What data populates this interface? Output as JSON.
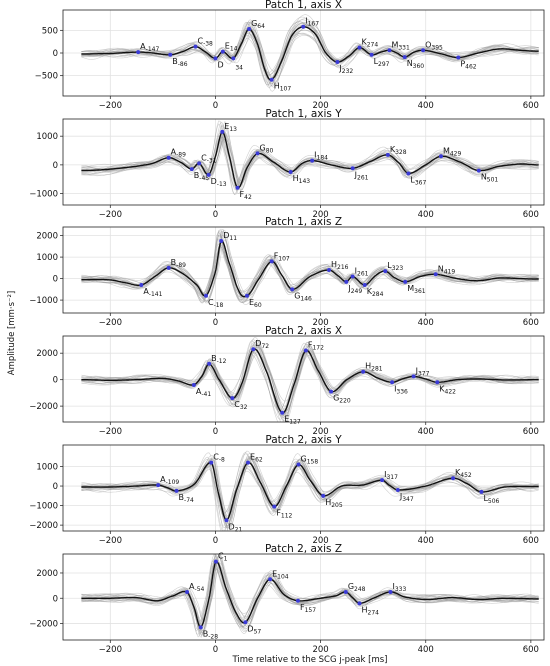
{
  "xlabel": "Time relative to the SCG j-peak [ms]",
  "ylabel": "Amplitude [mm·s⁻²]",
  "xlim": [
    -290,
    625
  ],
  "x_ticks": [
    -200,
    0,
    200,
    400,
    600
  ],
  "chart_data": [
    {
      "type": "line",
      "title": "Patch 1, axis X",
      "ylim": [
        -950,
        950
      ],
      "y_ticks": [
        -500,
        0,
        500
      ],
      "points": [
        {
          "l": "A",
          "s": "-147",
          "x": -147,
          "y": 20
        },
        {
          "l": "B",
          "s": "-86",
          "x": -86,
          "y": -40
        },
        {
          "l": "C",
          "s": "-38",
          "x": -38,
          "y": 140
        },
        {
          "l": "D",
          "s": "",
          "x": 0,
          "y": -120
        },
        {
          "l": "E",
          "s": "14",
          "x": 14,
          "y": 30
        },
        {
          "l": "",
          "s": "34",
          "x": 34,
          "y": -120
        },
        {
          "l": "G",
          "s": "64",
          "x": 64,
          "y": 530
        },
        {
          "l": "H",
          "s": "107",
          "x": 107,
          "y": -590
        },
        {
          "l": "I",
          "s": "167",
          "x": 167,
          "y": 580
        },
        {
          "l": "J",
          "s": "232",
          "x": 232,
          "y": -200
        },
        {
          "l": "K",
          "s": "274",
          "x": 274,
          "y": 120
        },
        {
          "l": "L",
          "s": "297",
          "x": 297,
          "y": -40
        },
        {
          "l": "M",
          "s": "331",
          "x": 331,
          "y": 60
        },
        {
          "l": "N",
          "s": "360",
          "x": 360,
          "y": -90
        },
        {
          "l": "O",
          "s": "395",
          "x": 395,
          "y": 60
        },
        {
          "l": "P",
          "s": "462",
          "x": 462,
          "y": -100
        }
      ],
      "curve": [
        [
          -250,
          -20
        ],
        [
          -200,
          -10
        ],
        [
          -147,
          20
        ],
        [
          -120,
          0
        ],
        [
          -86,
          -40
        ],
        [
          -60,
          40
        ],
        [
          -38,
          140
        ],
        [
          -20,
          30
        ],
        [
          0,
          -120
        ],
        [
          14,
          30
        ],
        [
          34,
          -120
        ],
        [
          50,
          220
        ],
        [
          64,
          530
        ],
        [
          80,
          200
        ],
        [
          95,
          -400
        ],
        [
          107,
          -590
        ],
        [
          125,
          -200
        ],
        [
          145,
          380
        ],
        [
          167,
          580
        ],
        [
          190,
          420
        ],
        [
          210,
          0
        ],
        [
          232,
          -200
        ],
        [
          255,
          -60
        ],
        [
          274,
          120
        ],
        [
          297,
          -40
        ],
        [
          315,
          20
        ],
        [
          331,
          60
        ],
        [
          345,
          0
        ],
        [
          360,
          -90
        ],
        [
          378,
          20
        ],
        [
          395,
          60
        ],
        [
          430,
          -20
        ],
        [
          462,
          -100
        ],
        [
          500,
          0
        ],
        [
          540,
          90
        ],
        [
          580,
          60
        ],
        [
          610,
          40
        ]
      ]
    },
    {
      "type": "line",
      "title": "Patch 1, axis Y",
      "ylim": [
        -1400,
        1600
      ],
      "y_ticks": [
        -1000,
        0,
        1000
      ],
      "points": [
        {
          "l": "A",
          "s": "-89",
          "x": -89,
          "y": 250
        },
        {
          "l": "B",
          "s": "-45",
          "x": -45,
          "y": -150
        },
        {
          "l": "C",
          "s": "-31",
          "x": -31,
          "y": 50
        },
        {
          "l": "D",
          "s": "-13",
          "x": -13,
          "y": -350
        },
        {
          "l": "E",
          "s": "13",
          "x": 13,
          "y": 1150
        },
        {
          "l": "F",
          "s": "42",
          "x": 42,
          "y": -800
        },
        {
          "l": "G",
          "s": "80",
          "x": 80,
          "y": 400
        },
        {
          "l": "H",
          "s": "143",
          "x": 143,
          "y": -250
        },
        {
          "l": "I",
          "s": "184",
          "x": 184,
          "y": 150
        },
        {
          "l": "J",
          "s": "261",
          "x": 261,
          "y": -120
        },
        {
          "l": "K",
          "s": "328",
          "x": 328,
          "y": 350
        },
        {
          "l": "L",
          "s": "367",
          "x": 367,
          "y": -300
        },
        {
          "l": "M",
          "s": "429",
          "x": 429,
          "y": 300
        },
        {
          "l": "N",
          "s": "501",
          "x": 501,
          "y": -200
        }
      ],
      "curve": [
        [
          -250,
          -200
        ],
        [
          -200,
          -150
        ],
        [
          -150,
          -50
        ],
        [
          -120,
          50
        ],
        [
          -89,
          250
        ],
        [
          -65,
          80
        ],
        [
          -45,
          -150
        ],
        [
          -31,
          50
        ],
        [
          -13,
          -350
        ],
        [
          0,
          300
        ],
        [
          13,
          1150
        ],
        [
          25,
          400
        ],
        [
          42,
          -800
        ],
        [
          60,
          -100
        ],
        [
          80,
          400
        ],
        [
          110,
          100
        ],
        [
          143,
          -250
        ],
        [
          165,
          50
        ],
        [
          184,
          150
        ],
        [
          220,
          0
        ],
        [
          261,
          -120
        ],
        [
          295,
          120
        ],
        [
          328,
          350
        ],
        [
          350,
          50
        ],
        [
          367,
          -300
        ],
        [
          400,
          0
        ],
        [
          429,
          300
        ],
        [
          465,
          100
        ],
        [
          501,
          -200
        ],
        [
          540,
          -50
        ],
        [
          580,
          30
        ],
        [
          610,
          0
        ]
      ]
    },
    {
      "type": "line",
      "title": "Patch 1, axis Z",
      "ylim": [
        -1600,
        2400
      ],
      "y_ticks": [
        -1000,
        0,
        1000,
        2000
      ],
      "points": [
        {
          "l": "A",
          "s": "-141",
          "x": -141,
          "y": -300
        },
        {
          "l": "B",
          "s": "-89",
          "x": -89,
          "y": 500
        },
        {
          "l": "C",
          "s": "-18",
          "x": -18,
          "y": -800
        },
        {
          "l": "D",
          "s": "11",
          "x": 11,
          "y": 1750
        },
        {
          "l": "E",
          "s": "60",
          "x": 60,
          "y": -800
        },
        {
          "l": "F",
          "s": "107",
          "x": 107,
          "y": 800
        },
        {
          "l": "G",
          "s": "146",
          "x": 146,
          "y": -500
        },
        {
          "l": "H",
          "s": "216",
          "x": 216,
          "y": 400
        },
        {
          "l": "I",
          "s": "261",
          "x": 261,
          "y": 100
        },
        {
          "l": "J",
          "s": "249",
          "x": 249,
          "y": -150
        },
        {
          "l": "K",
          "s": "284",
          "x": 284,
          "y": -300
        },
        {
          "l": "L",
          "s": "323",
          "x": 323,
          "y": 350
        },
        {
          "l": "M",
          "s": "361",
          "x": 361,
          "y": -150
        },
        {
          "l": "N",
          "s": "419",
          "x": 419,
          "y": 200
        }
      ],
      "curve": [
        [
          -250,
          -50
        ],
        [
          -200,
          -60
        ],
        [
          -170,
          -200
        ],
        [
          -141,
          -300
        ],
        [
          -115,
          100
        ],
        [
          -89,
          500
        ],
        [
          -60,
          200
        ],
        [
          -35,
          -300
        ],
        [
          -18,
          -800
        ],
        [
          0,
          300
        ],
        [
          11,
          1750
        ],
        [
          25,
          800
        ],
        [
          45,
          -600
        ],
        [
          60,
          -800
        ],
        [
          80,
          -100
        ],
        [
          107,
          800
        ],
        [
          125,
          200
        ],
        [
          146,
          -500
        ],
        [
          180,
          100
        ],
        [
          216,
          400
        ],
        [
          235,
          100
        ],
        [
          249,
          -150
        ],
        [
          261,
          100
        ],
        [
          284,
          -300
        ],
        [
          305,
          150
        ],
        [
          323,
          350
        ],
        [
          340,
          50
        ],
        [
          361,
          -150
        ],
        [
          390,
          100
        ],
        [
          419,
          200
        ],
        [
          460,
          0
        ],
        [
          500,
          -100
        ],
        [
          540,
          30
        ],
        [
          580,
          0
        ],
        [
          610,
          -20
        ]
      ]
    },
    {
      "type": "line",
      "title": "Patch 2, axis X",
      "ylim": [
        -3200,
        3300
      ],
      "y_ticks": [
        -2000,
        0,
        2000
      ],
      "points": [
        {
          "l": "A",
          "s": "-41",
          "x": -41,
          "y": -400
        },
        {
          "l": "B",
          "s": "-12",
          "x": -12,
          "y": 1200
        },
        {
          "l": "C",
          "s": "32",
          "x": 32,
          "y": -1400
        },
        {
          "l": "D",
          "s": "72",
          "x": 72,
          "y": 2300
        },
        {
          "l": "E",
          "s": "127",
          "x": 127,
          "y": -2500
        },
        {
          "l": "F",
          "s": "172",
          "x": 172,
          "y": 2200
        },
        {
          "l": "G",
          "s": "220",
          "x": 220,
          "y": -900
        },
        {
          "l": "H",
          "s": "281",
          "x": 281,
          "y": 600
        },
        {
          "l": "I",
          "s": "336",
          "x": 336,
          "y": -200
        },
        {
          "l": "J",
          "s": "377",
          "x": 377,
          "y": 250
        },
        {
          "l": "K",
          "s": "422",
          "x": 422,
          "y": -200
        }
      ],
      "curve": [
        [
          -250,
          0
        ],
        [
          -200,
          -50
        ],
        [
          -150,
          0
        ],
        [
          -100,
          100
        ],
        [
          -70,
          -100
        ],
        [
          -41,
          -400
        ],
        [
          -25,
          300
        ],
        [
          -12,
          1200
        ],
        [
          5,
          100
        ],
        [
          32,
          -1400
        ],
        [
          50,
          -300
        ],
        [
          72,
          2300
        ],
        [
          95,
          800
        ],
        [
          127,
          -2500
        ],
        [
          150,
          -300
        ],
        [
          172,
          2200
        ],
        [
          195,
          700
        ],
        [
          220,
          -900
        ],
        [
          250,
          0
        ],
        [
          281,
          600
        ],
        [
          310,
          100
        ],
        [
          336,
          -200
        ],
        [
          355,
          50
        ],
        [
          377,
          250
        ],
        [
          400,
          50
        ],
        [
          422,
          -200
        ],
        [
          460,
          0
        ],
        [
          500,
          50
        ],
        [
          550,
          -20
        ],
        [
          610,
          0
        ]
      ]
    },
    {
      "type": "line",
      "title": "Patch 2, axis Y",
      "ylim": [
        -2300,
        2100
      ],
      "y_ticks": [
        -2000,
        -1000,
        0,
        1000
      ],
      "points": [
        {
          "l": "A",
          "s": "-109",
          "x": -109,
          "y": 50
        },
        {
          "l": "B",
          "s": "-74",
          "x": -74,
          "y": -250
        },
        {
          "l": "C",
          "s": "-8",
          "x": -8,
          "y": 1200
        },
        {
          "l": "D",
          "s": "21",
          "x": 21,
          "y": -1750
        },
        {
          "l": "E",
          "s": "62",
          "x": 62,
          "y": 1200
        },
        {
          "l": "F",
          "s": "112",
          "x": 112,
          "y": -1050
        },
        {
          "l": "G",
          "s": "158",
          "x": 158,
          "y": 1100
        },
        {
          "l": "H",
          "s": "205",
          "x": 205,
          "y": -500
        },
        {
          "l": "I",
          "s": "317",
          "x": 317,
          "y": 300
        },
        {
          "l": "J",
          "s": "347",
          "x": 347,
          "y": -200
        },
        {
          "l": "K",
          "s": "452",
          "x": 452,
          "y": 400
        },
        {
          "l": "L",
          "s": "506",
          "x": 506,
          "y": -300
        }
      ],
      "curve": [
        [
          -250,
          -50
        ],
        [
          -200,
          -50
        ],
        [
          -150,
          0
        ],
        [
          -109,
          50
        ],
        [
          -90,
          -100
        ],
        [
          -74,
          -250
        ],
        [
          -40,
          100
        ],
        [
          -8,
          1200
        ],
        [
          5,
          -300
        ],
        [
          21,
          -1750
        ],
        [
          40,
          -200
        ],
        [
          62,
          1200
        ],
        [
          85,
          200
        ],
        [
          112,
          -1050
        ],
        [
          135,
          0
        ],
        [
          158,
          1100
        ],
        [
          180,
          300
        ],
        [
          205,
          -500
        ],
        [
          240,
          0
        ],
        [
          280,
          50
        ],
        [
          317,
          300
        ],
        [
          330,
          50
        ],
        [
          347,
          -200
        ],
        [
          400,
          0
        ],
        [
          452,
          400
        ],
        [
          480,
          100
        ],
        [
          506,
          -300
        ],
        [
          550,
          -50
        ],
        [
          610,
          -20
        ]
      ]
    },
    {
      "type": "line",
      "title": "Patch 2, axis Z",
      "ylim": [
        -3300,
        3500
      ],
      "y_ticks": [
        -2000,
        0,
        2000
      ],
      "points": [
        {
          "l": "A",
          "s": "-54",
          "x": -54,
          "y": 500
        },
        {
          "l": "B",
          "s": "-28",
          "x": -28,
          "y": -2300
        },
        {
          "l": "C",
          "s": "1",
          "x": 1,
          "y": 2900
        },
        {
          "l": "D",
          "s": "57",
          "x": 57,
          "y": -1900
        },
        {
          "l": "E",
          "s": "104",
          "x": 104,
          "y": 1500
        },
        {
          "l": "F",
          "s": "157",
          "x": 157,
          "y": -200
        },
        {
          "l": "G",
          "s": "248",
          "x": 248,
          "y": 500
        },
        {
          "l": "H",
          "s": "274",
          "x": 274,
          "y": -400
        },
        {
          "l": "I",
          "s": "333",
          "x": 333,
          "y": 500
        }
      ],
      "curve": [
        [
          -250,
          0
        ],
        [
          -200,
          0
        ],
        [
          -150,
          50
        ],
        [
          -110,
          -200
        ],
        [
          -80,
          200
        ],
        [
          -54,
          500
        ],
        [
          -40,
          -800
        ],
        [
          -28,
          -2300
        ],
        [
          -12,
          0
        ],
        [
          1,
          2900
        ],
        [
          20,
          800
        ],
        [
          40,
          -1200
        ],
        [
          57,
          -1900
        ],
        [
          80,
          0
        ],
        [
          104,
          1500
        ],
        [
          130,
          300
        ],
        [
          157,
          -200
        ],
        [
          200,
          0
        ],
        [
          230,
          200
        ],
        [
          248,
          500
        ],
        [
          262,
          0
        ],
        [
          274,
          -400
        ],
        [
          300,
          0
        ],
        [
          333,
          500
        ],
        [
          360,
          100
        ],
        [
          400,
          -100
        ],
        [
          450,
          50
        ],
        [
          500,
          -100
        ],
        [
          550,
          0
        ],
        [
          610,
          -50
        ]
      ]
    }
  ]
}
